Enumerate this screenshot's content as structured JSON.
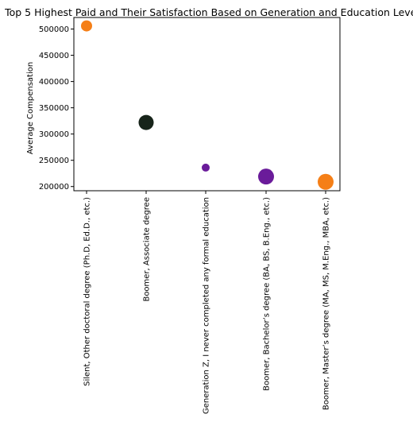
{
  "chart_data": {
    "type": "scatter",
    "title": "Top 5 Highest Paid and Their Satisfaction Based on Generation and Education Level",
    "xlabel": "",
    "ylabel": "Average Compensation",
    "categories": [
      "Silent, Other doctoral degree (Ph.D, Ed.D., etc.)",
      "Boomer, Associate degree",
      "Generation Z, I never completed any formal education",
      "Boomer, Bachelor’s degree (BA, BS, B.Eng., etc.)",
      "Boomer, Master’s degree (MA, MS, M.Eng., MBA, etc.)"
    ],
    "values": [
      506000,
      322000,
      236000,
      219000,
      209000
    ],
    "colors": [
      "#f57f17",
      "#17241a",
      "#6a1b9a",
      "#6a1b9a",
      "#f57f17"
    ],
    "ylim": [
      192000,
      522000
    ],
    "yticks": [
      200000,
      250000,
      300000,
      350000,
      400000,
      450000,
      500000
    ],
    "grid": false,
    "legend": "none"
  }
}
